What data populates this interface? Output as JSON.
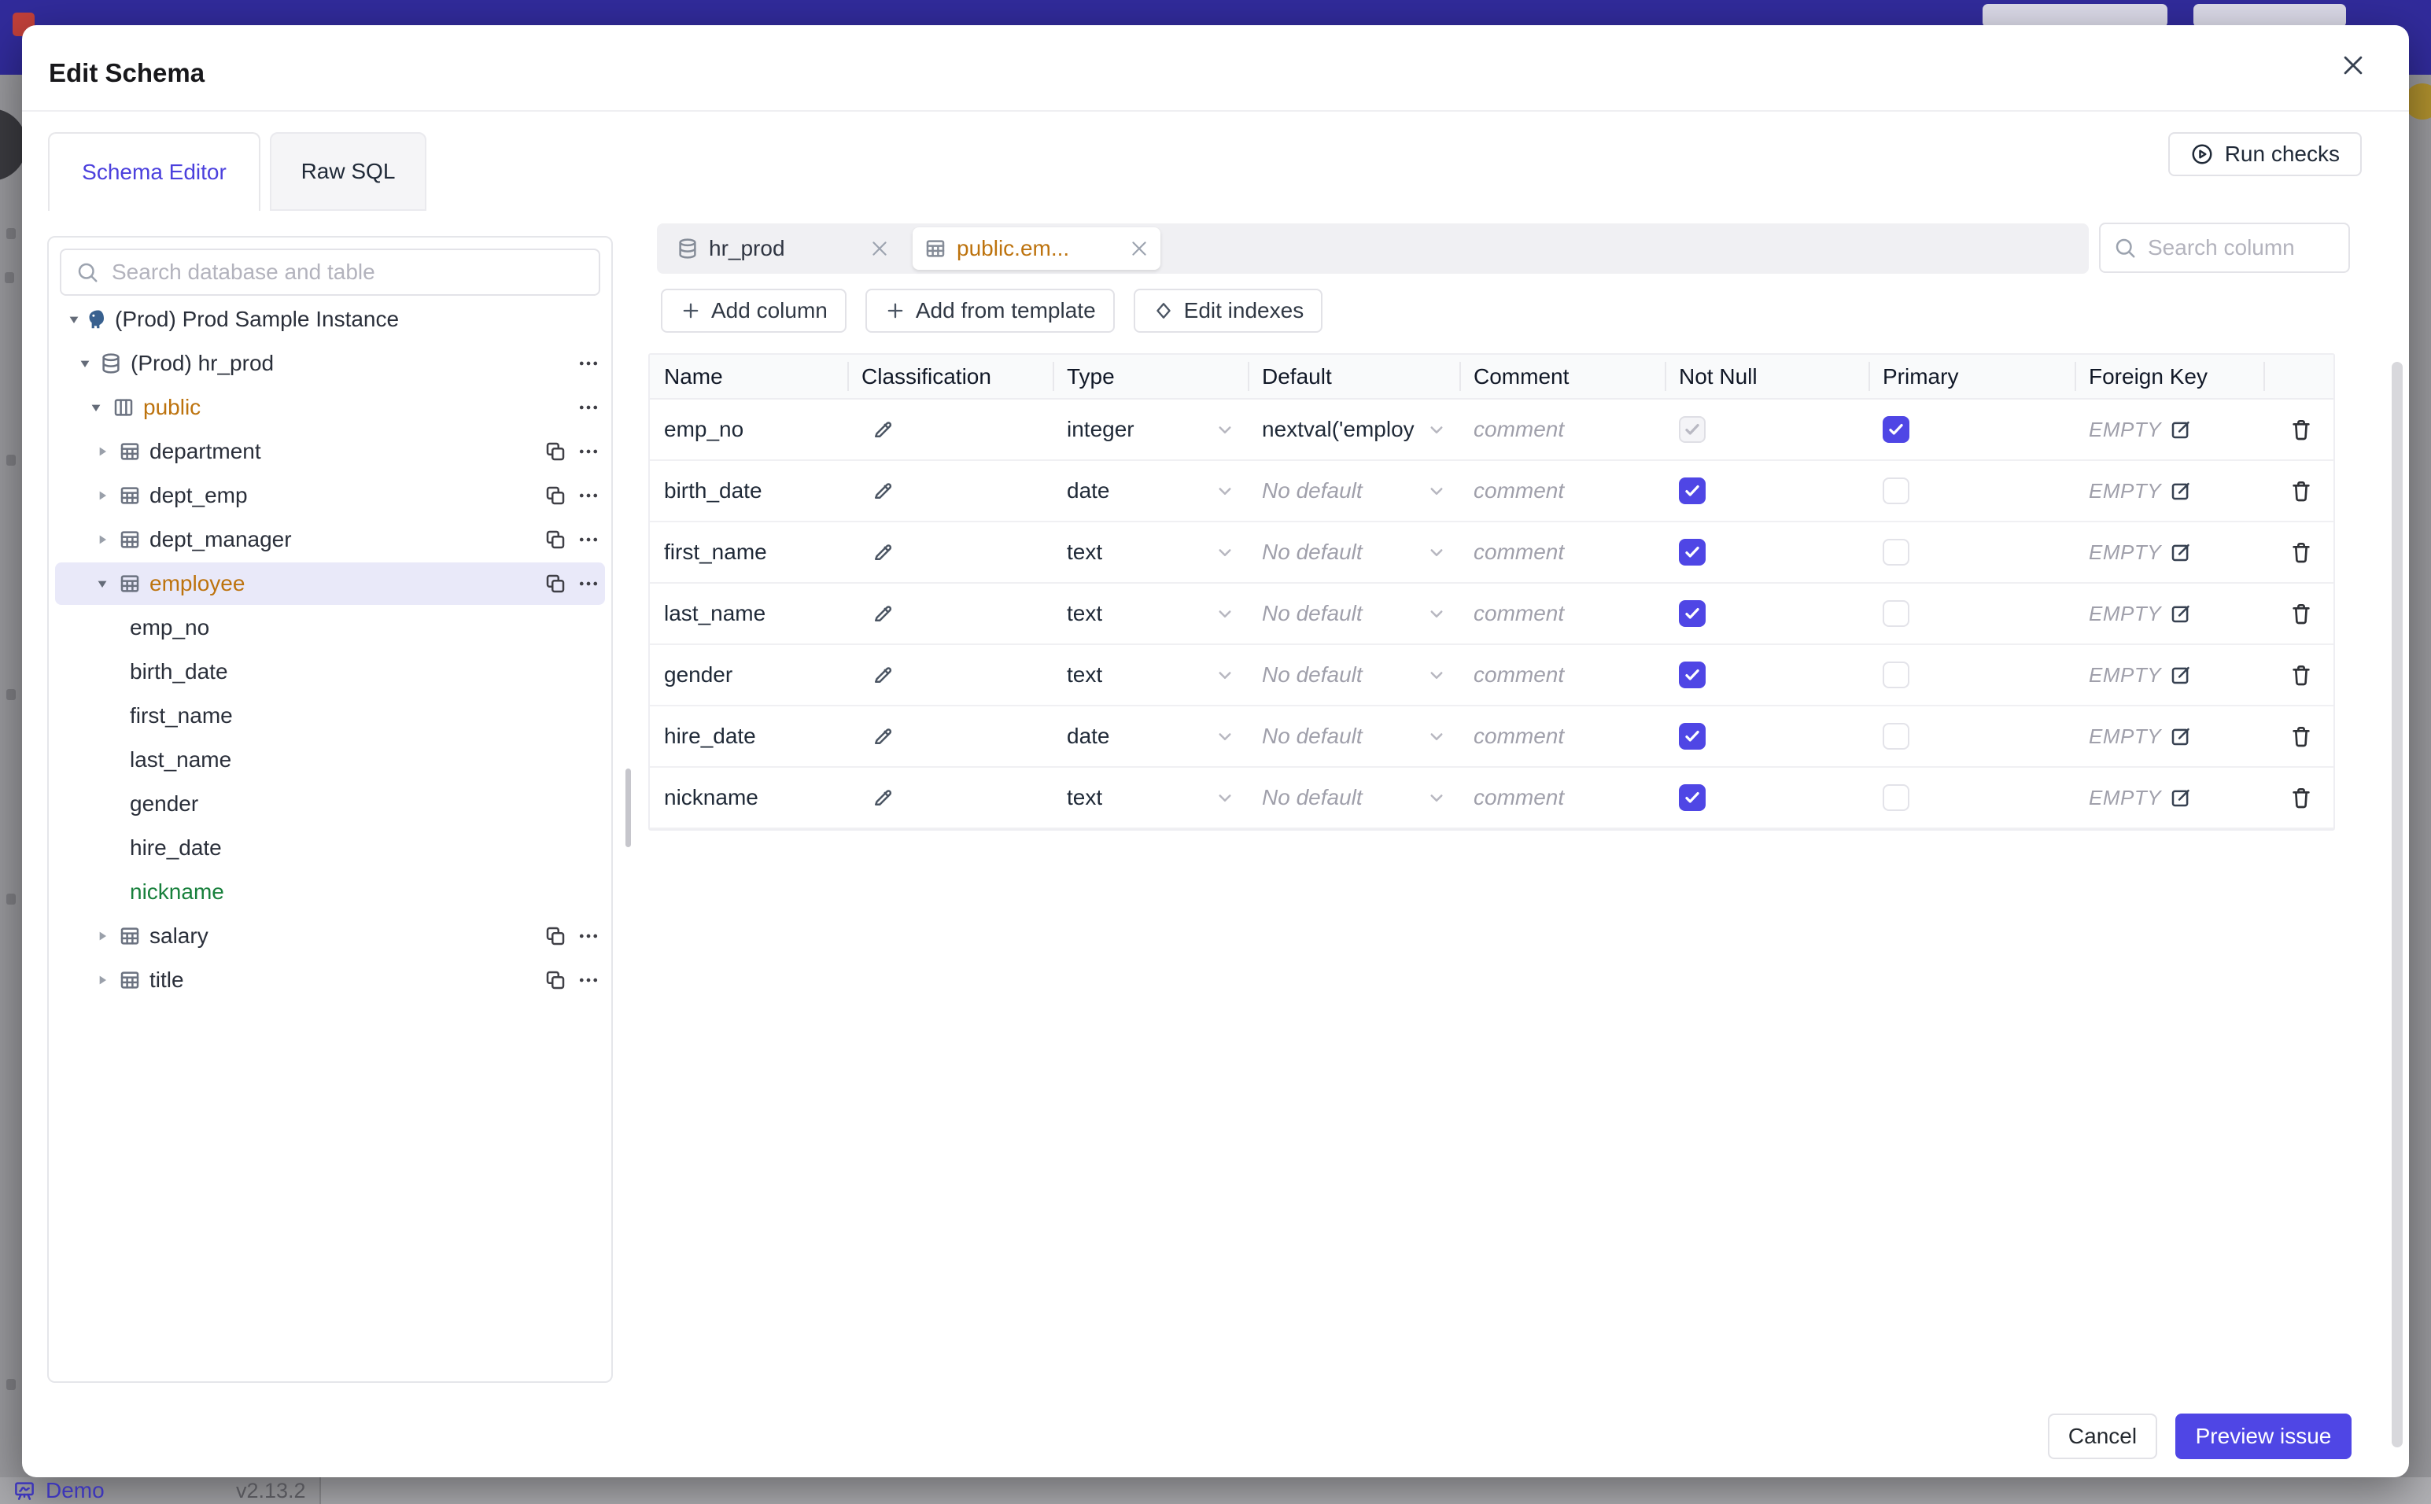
{
  "colors": {
    "accent": "#4f46e5",
    "modified": "#bd730e",
    "added": "#18803c",
    "topbar": "#312b9b",
    "selected_row": "#e9e9f9",
    "added_row": "#e9f9ef"
  },
  "backdrop": {
    "brand": "Demo",
    "version": "v2.13.2"
  },
  "dialog": {
    "title": "Edit Schema",
    "run_checks": "Run checks",
    "tabs": [
      {
        "label": "Schema Editor",
        "active": true
      },
      {
        "label": "Raw SQL",
        "active": false
      }
    ],
    "cancel": "Cancel",
    "primary_action": "Preview issue"
  },
  "sidebar": {
    "search_placeholder": "Search database and table",
    "tree": [
      {
        "level": 1,
        "icon": "postgres",
        "caret": "down",
        "label": "(Prod) Prod Sample Instance",
        "tone": "normal"
      },
      {
        "level": 2,
        "icon": "database",
        "caret": "down",
        "label": "(Prod) hr_prod",
        "tone": "normal",
        "more": true
      },
      {
        "level": 3,
        "icon": "schema",
        "caret": "down",
        "label": "public",
        "tone": "modified",
        "more": true
      },
      {
        "level": 4,
        "icon": "table",
        "caret": "right",
        "label": "department",
        "tone": "normal",
        "copy": true,
        "more": true
      },
      {
        "level": 4,
        "icon": "table",
        "caret": "right",
        "label": "dept_emp",
        "tone": "normal",
        "copy": true,
        "more": true
      },
      {
        "level": 4,
        "icon": "table",
        "caret": "right",
        "label": "dept_manager",
        "tone": "normal",
        "copy": true,
        "more": true
      },
      {
        "level": 4,
        "icon": "table",
        "caret": "down",
        "label": "employee",
        "tone": "modified",
        "selected": true,
        "copy": true,
        "more": true
      },
      {
        "level": 5,
        "label": "emp_no",
        "tone": "normal"
      },
      {
        "level": 5,
        "label": "birth_date",
        "tone": "normal"
      },
      {
        "level": 5,
        "label": "first_name",
        "tone": "normal"
      },
      {
        "level": 5,
        "label": "last_name",
        "tone": "normal"
      },
      {
        "level": 5,
        "label": "gender",
        "tone": "normal"
      },
      {
        "level": 5,
        "label": "hire_date",
        "tone": "normal"
      },
      {
        "level": 5,
        "label": "nickname",
        "tone": "added"
      },
      {
        "level": 4,
        "icon": "table",
        "caret": "right",
        "label": "salary",
        "tone": "normal",
        "copy": true,
        "more": true
      },
      {
        "level": 4,
        "icon": "table",
        "caret": "right",
        "label": "title",
        "tone": "normal",
        "copy": true,
        "more": true
      }
    ]
  },
  "editor": {
    "open_tabs": [
      {
        "icon": "database",
        "label": "hr_prod",
        "active": false
      },
      {
        "icon": "table",
        "label": "public.em...",
        "active": true,
        "modified": true
      }
    ],
    "search_placeholder": "Search column",
    "actions": [
      {
        "icon": "plus",
        "label": "Add column"
      },
      {
        "icon": "plus",
        "label": "Add from template"
      },
      {
        "icon": "diamond",
        "label": "Edit indexes"
      }
    ],
    "columns_table": {
      "headers": [
        "Name",
        "Classification",
        "Type",
        "Default",
        "Comment",
        "Not Null",
        "Primary",
        "Foreign Key",
        ""
      ],
      "comment_placeholder": "comment",
      "empty_label": "EMPTY",
      "rows": [
        {
          "name": "emp_no",
          "type": "integer",
          "default": "nextval('employ",
          "has_default": true,
          "not_null": "checked-disabled",
          "primary": "checked",
          "foreign_key": "EMPTY",
          "added": false
        },
        {
          "name": "birth_date",
          "type": "date",
          "default": "No default",
          "has_default": false,
          "not_null": "checked",
          "primary": "unchecked",
          "foreign_key": "EMPTY",
          "added": false
        },
        {
          "name": "first_name",
          "type": "text",
          "default": "No default",
          "has_default": false,
          "not_null": "checked",
          "primary": "unchecked",
          "foreign_key": "EMPTY",
          "added": false
        },
        {
          "name": "last_name",
          "type": "text",
          "default": "No default",
          "has_default": false,
          "not_null": "checked",
          "primary": "unchecked",
          "foreign_key": "EMPTY",
          "added": false
        },
        {
          "name": "gender",
          "type": "text",
          "default": "No default",
          "has_default": false,
          "not_null": "checked",
          "primary": "unchecked",
          "foreign_key": "EMPTY",
          "added": false
        },
        {
          "name": "hire_date",
          "type": "date",
          "default": "No default",
          "has_default": false,
          "not_null": "checked",
          "primary": "unchecked",
          "foreign_key": "EMPTY",
          "added": false
        },
        {
          "name": "nickname",
          "type": "text",
          "default": "No default",
          "has_default": false,
          "not_null": "checked",
          "primary": "unchecked",
          "foreign_key": "EMPTY",
          "added": true
        }
      ]
    }
  }
}
